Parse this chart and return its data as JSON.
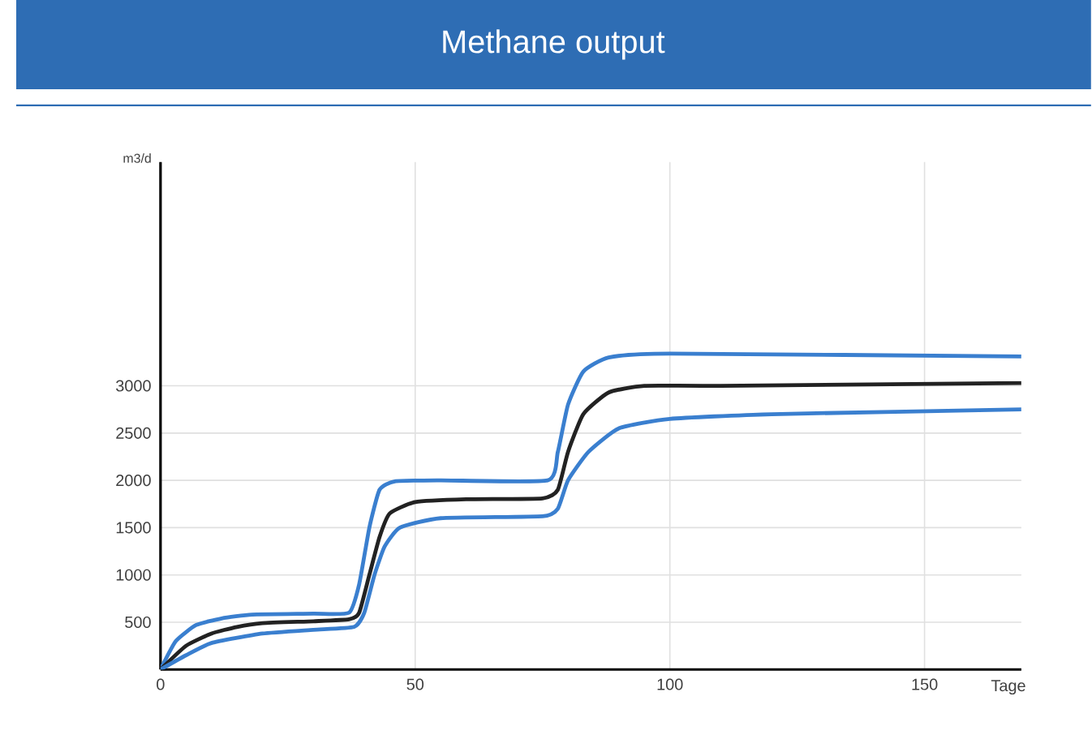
{
  "chart_data": {
    "type": "line",
    "title": "Methane output",
    "xlabel": "Tage",
    "ylabel": "m3/d",
    "xlim": [
      0,
      169
    ],
    "ylim": [
      0,
      5366
    ],
    "xticks": [
      0,
      50,
      100,
      150
    ],
    "yticks": [
      500,
      1000,
      1500,
      2000,
      2500,
      3000
    ],
    "grid": true,
    "marker": "none",
    "line_style": "solid",
    "series": [
      {
        "color": "#3a7fcf",
        "x": [
          0,
          3,
          7,
          12,
          18,
          30,
          37,
          39,
          41,
          43,
          46,
          55,
          76,
          78,
          80,
          83,
          88,
          100,
          169
        ],
        "values": [
          0,
          300,
          470,
          540,
          580,
          590,
          600,
          900,
          1500,
          1900,
          1990,
          2000,
          2000,
          2300,
          2800,
          3150,
          3300,
          3340,
          3310
        ]
      },
      {
        "color": "#222222",
        "x": [
          0,
          5,
          10,
          15,
          20,
          30,
          37,
          39,
          41,
          43,
          45,
          50,
          60,
          75,
          78,
          80,
          83,
          88,
          95,
          110,
          169
        ],
        "values": [
          0,
          250,
          380,
          450,
          490,
          510,
          530,
          600,
          1000,
          1400,
          1650,
          1770,
          1800,
          1810,
          1900,
          2300,
          2700,
          2930,
          3000,
          3000,
          3030
        ]
      },
      {
        "color": "#3a7fcf",
        "x": [
          0,
          5,
          10,
          20,
          30,
          38,
          40,
          42,
          44,
          47,
          55,
          75,
          78,
          80,
          84,
          90,
          100,
          120,
          169
        ],
        "values": [
          0,
          150,
          280,
          380,
          420,
          450,
          600,
          1000,
          1300,
          1500,
          1600,
          1620,
          1700,
          2000,
          2300,
          2550,
          2650,
          2700,
          2750
        ]
      }
    ]
  }
}
